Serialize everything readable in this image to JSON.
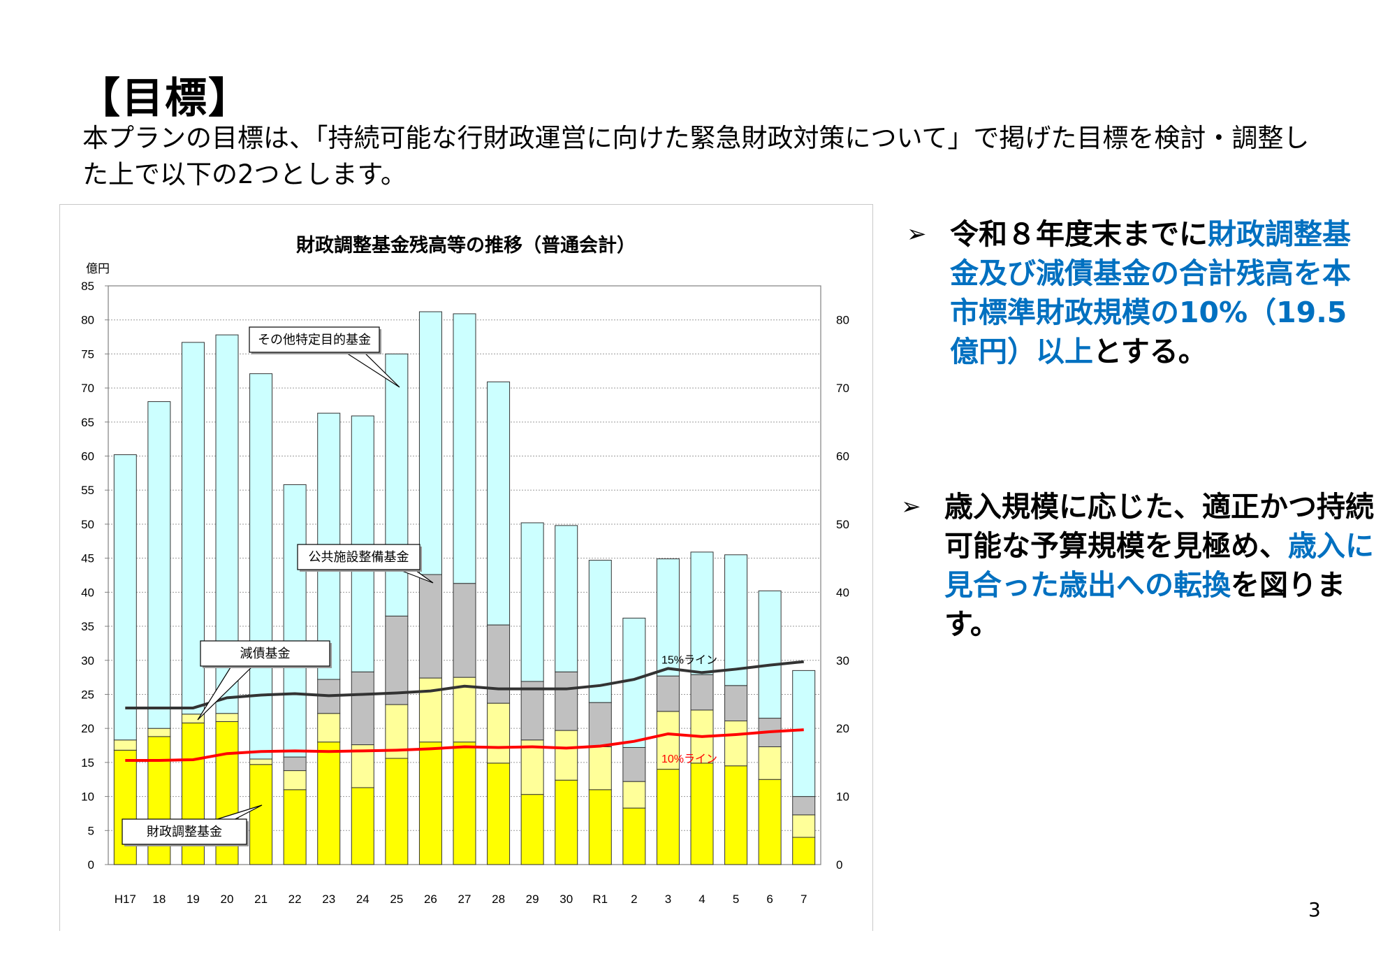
{
  "page": {
    "heading": "【目標】",
    "intro": "本プランの目標は、「持続可能な行財政運営に向けた緊急財政対策について」で掲げた目標を検討・調整した上で以下の2つとします。",
    "page_number": "3"
  },
  "goals": [
    {
      "arrow": "➢",
      "parts": [
        {
          "text": "令和８年度末までに",
          "highlight": false
        },
        {
          "text": "財政調整基金及び減債基金の合計残高を本市標準財政規模の10%（19.5億円）以上",
          "highlight": true
        },
        {
          "text": "とする。",
          "highlight": false
        }
      ]
    },
    {
      "arrow": "➢",
      "parts": [
        {
          "text": "歳入規模に応じた、適正かつ持続可能な予算規模を見極め、",
          "highlight": false
        },
        {
          "text": "歳入に見合った歳出への転換",
          "highlight": true
        },
        {
          "text": "を図ります。",
          "highlight": false
        }
      ]
    }
  ],
  "colors": {
    "highlight": "#0070c0",
    "fiscal_fund": "#ffff00",
    "debt_fund": "#ffff99",
    "public_fund": "#c0c0c0",
    "other_fund": "#ccffff",
    "line_15": "#333333",
    "line_10": "#ff0000"
  },
  "chart_data": {
    "type": "bar",
    "stacked": true,
    "title": "財政調整基金残高等の推移（普通会計）",
    "unit_label": "億円",
    "categories": [
      "H17",
      "18",
      "19",
      "20",
      "21",
      "22",
      "23",
      "24",
      "25",
      "26",
      "27",
      "28",
      "29",
      "30",
      "R1",
      "2",
      "3",
      "4",
      "5",
      "6",
      "7"
    ],
    "ylim": [
      0,
      85
    ],
    "left_ticks": [
      0,
      5,
      10,
      15,
      20,
      25,
      30,
      35,
      40,
      45,
      50,
      55,
      60,
      65,
      70,
      75,
      80,
      85
    ],
    "right_ticks": [
      0,
      10,
      20,
      30,
      40,
      50,
      60,
      70,
      80
    ],
    "grid": true,
    "series": [
      {
        "name": "財政調整基金",
        "color": "#ffff00",
        "values": [
          16.8,
          18.8,
          20.8,
          21.0,
          14.7,
          11.0,
          18.0,
          11.3,
          15.6,
          18.0,
          18.0,
          14.9,
          10.3,
          12.4,
          11.0,
          8.3,
          14.0,
          14.9,
          14.5,
          12.5,
          4.0
        ]
      },
      {
        "name": "減債基金",
        "color": "#ffff99",
        "values": [
          1.5,
          1.2,
          1.3,
          1.2,
          0.8,
          2.8,
          4.2,
          6.3,
          7.9,
          9.4,
          9.5,
          8.8,
          8.0,
          7.3,
          6.3,
          3.9,
          8.5,
          7.8,
          6.6,
          4.8,
          3.3
        ]
      },
      {
        "name": "公共施設整備基金",
        "color": "#c0c0c0",
        "values": [
          0,
          0,
          0,
          0,
          0,
          2.0,
          5.0,
          10.7,
          13.0,
          15.2,
          13.8,
          11.5,
          8.6,
          8.6,
          6.5,
          5.0,
          5.2,
          5.2,
          5.2,
          4.2,
          2.7
        ]
      },
      {
        "name": "その他特定目的基金",
        "color": "#ccffff",
        "values": [
          41.9,
          48.0,
          54.6,
          55.6,
          56.6,
          40.0,
          39.1,
          37.6,
          38.5,
          38.6,
          39.6,
          35.7,
          23.3,
          21.5,
          20.9,
          19.0,
          17.2,
          18.0,
          19.2,
          18.7,
          18.5
        ]
      }
    ],
    "lines": [
      {
        "name": "15%ライン",
        "color": "#333333",
        "values": [
          23.0,
          23.0,
          23.0,
          24.5,
          24.9,
          25.1,
          24.8,
          25.0,
          25.2,
          25.5,
          26.2,
          25.8,
          25.8,
          25.8,
          26.3,
          27.2,
          28.8,
          28.2,
          28.7,
          29.3,
          29.8
        ]
      },
      {
        "name": "10%ライン",
        "color": "#ff0000",
        "values": [
          15.3,
          15.3,
          15.4,
          16.3,
          16.6,
          16.7,
          16.6,
          16.7,
          16.8,
          17.0,
          17.3,
          17.2,
          17.3,
          17.1,
          17.4,
          18.1,
          19.2,
          18.8,
          19.1,
          19.5,
          19.8
        ]
      }
    ],
    "callouts": [
      "その他特定目的基金",
      "公共施設整備基金",
      "減債基金",
      "財政調整基金"
    ]
  }
}
